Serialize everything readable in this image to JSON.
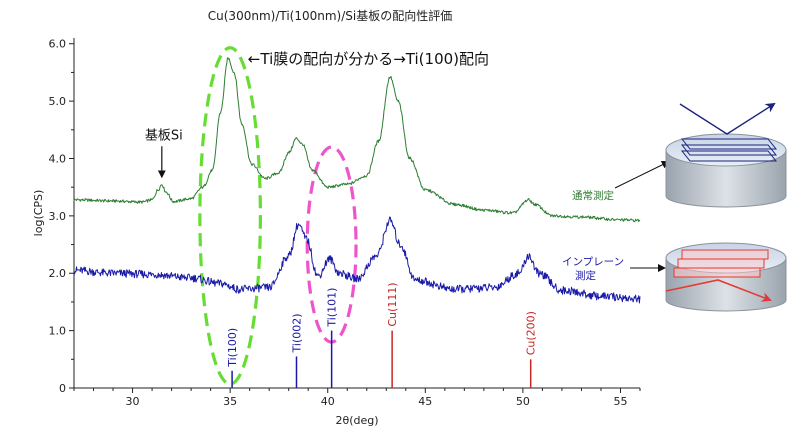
{
  "chart_data": {
    "type": "line",
    "title": "Cu(300nm)/Ti(100nm)/Si基板の配向性評価",
    "xlabel": "2θ(deg)",
    "ylabel": "log(CPS)",
    "xlim": [
      27,
      56
    ],
    "ylim": [
      0,
      6.1
    ],
    "x_ticks": [
      "30",
      "35",
      "40",
      "45",
      "50",
      "55"
    ],
    "y_ticks": [
      "0",
      "1.0",
      "2.0",
      "3.0",
      "4.0",
      "5.0",
      "6.0"
    ],
    "grid": false,
    "colors": {
      "normal": "#2e7d32",
      "inplane": "#1a1aa8",
      "ti_ref": "#1a1aa8",
      "cu_ref": "#c62828",
      "ellipse_ti100": "#66dd33",
      "ellipse_ti101": "#ee55cc"
    },
    "series": [
      {
        "name": "通常測定",
        "color": "#2e7d32",
        "baseline": 3.2,
        "points": [
          [
            27,
            3.28
          ],
          [
            29,
            3.26
          ],
          [
            30.5,
            3.24
          ],
          [
            31.0,
            3.28
          ],
          [
            31.3,
            3.45
          ],
          [
            31.5,
            3.55
          ],
          [
            31.7,
            3.42
          ],
          [
            32.1,
            3.25
          ],
          [
            33.0,
            3.3
          ],
          [
            33.6,
            3.5
          ],
          [
            34.1,
            3.8
          ],
          [
            34.5,
            4.8
          ],
          [
            34.9,
            5.75
          ],
          [
            35.2,
            5.5
          ],
          [
            35.6,
            4.6
          ],
          [
            36.1,
            3.9
          ],
          [
            36.8,
            3.65
          ],
          [
            37.5,
            3.75
          ],
          [
            38.0,
            4.1
          ],
          [
            38.4,
            4.35
          ],
          [
            38.7,
            4.25
          ],
          [
            39.2,
            3.8
          ],
          [
            40.0,
            3.5
          ],
          [
            41.0,
            3.55
          ],
          [
            42.0,
            3.7
          ],
          [
            42.6,
            4.3
          ],
          [
            43.2,
            5.42
          ],
          [
            43.6,
            5.0
          ],
          [
            44.2,
            4.0
          ],
          [
            45.0,
            3.45
          ],
          [
            46.5,
            3.2
          ],
          [
            48.0,
            3.1
          ],
          [
            49.5,
            3.05
          ],
          [
            50.3,
            3.28
          ],
          [
            50.6,
            3.2
          ],
          [
            51.5,
            3.0
          ],
          [
            53.0,
            2.98
          ],
          [
            55.0,
            2.93
          ],
          [
            56,
            2.92
          ]
        ]
      },
      {
        "name": "インプレーン測定",
        "color": "#1a1aa8",
        "baseline": 2.0,
        "points": [
          [
            27,
            2.05
          ],
          [
            29,
            2.0
          ],
          [
            31,
            1.98
          ],
          [
            33,
            1.92
          ],
          [
            34.5,
            1.82
          ],
          [
            35.5,
            1.72
          ],
          [
            37.0,
            1.75
          ],
          [
            38.0,
            2.3
          ],
          [
            38.5,
            2.85
          ],
          [
            38.9,
            2.6
          ],
          [
            39.5,
            1.95
          ],
          [
            40.1,
            2.25
          ],
          [
            40.6,
            2.0
          ],
          [
            41.5,
            1.9
          ],
          [
            42.5,
            2.3
          ],
          [
            43.2,
            2.92
          ],
          [
            43.7,
            2.5
          ],
          [
            44.5,
            1.88
          ],
          [
            46.5,
            1.72
          ],
          [
            48.5,
            1.75
          ],
          [
            49.8,
            2.0
          ],
          [
            50.3,
            2.3
          ],
          [
            50.8,
            2.0
          ],
          [
            52.0,
            1.7
          ],
          [
            54.0,
            1.6
          ],
          [
            56,
            1.55
          ]
        ]
      }
    ],
    "reference_lines": [
      {
        "label": "Ti(100)",
        "x": 35.1,
        "height": 0.3,
        "color": "#1a1aa8"
      },
      {
        "label": "Ti(002)",
        "x": 38.4,
        "height": 0.55,
        "color": "#1a1aa8"
      },
      {
        "label": "Ti(101)",
        "x": 40.2,
        "height": 1.0,
        "color": "#1a1aa8"
      },
      {
        "label": "Cu(111)",
        "x": 43.3,
        "height": 1.0,
        "color": "#c62828"
      },
      {
        "label": "Cu(200)",
        "x": 50.4,
        "height": 0.5,
        "color": "#c62828"
      }
    ],
    "annotations": [
      {
        "text": "基板Si",
        "x": 31.5,
        "y": 3.55
      },
      {
        "text": "←Ti膜の配向が分かる→Ti(100)配向",
        "x": 35.7,
        "y": 5.75
      }
    ],
    "ellipses": [
      {
        "cx": 35.0,
        "cy": 3.0,
        "rx": 1.55,
        "ry": 2.93,
        "color": "#66dd33"
      },
      {
        "cx": 40.2,
        "cy": 2.5,
        "rx": 1.25,
        "ry": 1.7,
        "color": "#ee55cc"
      }
    ]
  },
  "diagrams": {
    "normal_label": "通常測定",
    "inplane_label_line1": "インプレーン",
    "inplane_label_line2": "測定"
  }
}
